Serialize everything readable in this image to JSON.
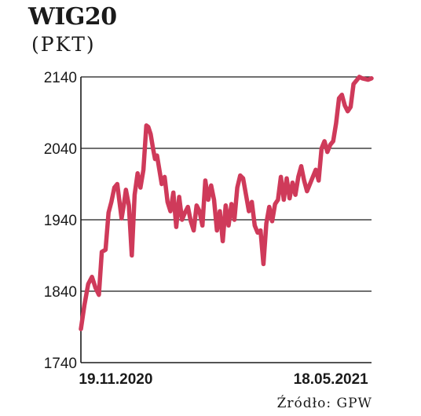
{
  "header": {
    "title": "WIG20",
    "subtitle": "(PKT)"
  },
  "footer": {
    "source": "Źródło: GPW"
  },
  "chart_data": {
    "type": "line",
    "title": "WIG20",
    "ylabel": "(PKT)",
    "xlabel": "",
    "ylim": [
      1740,
      2140
    ],
    "yticks": [
      1740,
      1840,
      1940,
      2040,
      2140
    ],
    "ytick_labels": [
      "1740",
      "1840",
      "1940",
      "2040",
      "2140"
    ],
    "xlim": [
      0,
      1
    ],
    "xticks": [
      0.12,
      0.86
    ],
    "xtick_labels": [
      "19.11.2020",
      "18.05.2021"
    ],
    "grid": "horizontal",
    "line_color": "#cf3a5a",
    "series": [
      {
        "name": "",
        "x": [
          0.0,
          0.012,
          0.025,
          0.038,
          0.05,
          0.062,
          0.072,
          0.085,
          0.095,
          0.105,
          0.115,
          0.125,
          0.132,
          0.14,
          0.148,
          0.155,
          0.165,
          0.175,
          0.185,
          0.195,
          0.205,
          0.215,
          0.225,
          0.232,
          0.24,
          0.248,
          0.255,
          0.262,
          0.27,
          0.278,
          0.288,
          0.298,
          0.308,
          0.318,
          0.328,
          0.338,
          0.348,
          0.358,
          0.368,
          0.378,
          0.388,
          0.398,
          0.408,
          0.418,
          0.428,
          0.438,
          0.448,
          0.458,
          0.468,
          0.478,
          0.488,
          0.498,
          0.508,
          0.518,
          0.528,
          0.538,
          0.548,
          0.558,
          0.568,
          0.578,
          0.588,
          0.598,
          0.608,
          0.618,
          0.628,
          0.638,
          0.648,
          0.658,
          0.668,
          0.678,
          0.688,
          0.698,
          0.708,
          0.718,
          0.728,
          0.738,
          0.748,
          0.758,
          0.768,
          0.778,
          0.788,
          0.798,
          0.808,
          0.818,
          0.828,
          0.838,
          0.848,
          0.858,
          0.868,
          0.878,
          0.888,
          0.898,
          0.908,
          0.918,
          0.928,
          0.938,
          0.948,
          0.958,
          0.968,
          0.978,
          0.988,
          1.0
        ],
        "values": [
          1787,
          1820,
          1850,
          1860,
          1845,
          1835,
          1895,
          1898,
          1950,
          1965,
          1985,
          1990,
          1968,
          1942,
          1962,
          1982,
          1960,
          1890,
          1975,
          2005,
          1985,
          2010,
          2072,
          2070,
          2060,
          2040,
          2025,
          2030,
          2010,
          1990,
          2000,
          1965,
          1952,
          1978,
          1930,
          1972,
          1940,
          1950,
          1958,
          1938,
          1925,
          1960,
          1952,
          1932,
          1995,
          1968,
          1988,
          1968,
          1925,
          1952,
          1910,
          1960,
          1932,
          1962,
          1940,
          1985,
          2002,
          1998,
          1975,
          1952,
          1965,
          1932,
          1922,
          1925,
          1878,
          1935,
          1958,
          1938,
          1962,
          1968,
          2000,
          1968,
          1998,
          1970,
          1992,
          1975,
          2000,
          2015,
          1995,
          1980,
          1990,
          2000,
          2010,
          1995,
          2040,
          2050,
          2035,
          2045,
          2050,
          2075,
          2110,
          2115,
          2100,
          2092,
          2098,
          2130,
          2135,
          2140,
          2138,
          2137,
          2136,
          2138
        ]
      }
    ]
  }
}
